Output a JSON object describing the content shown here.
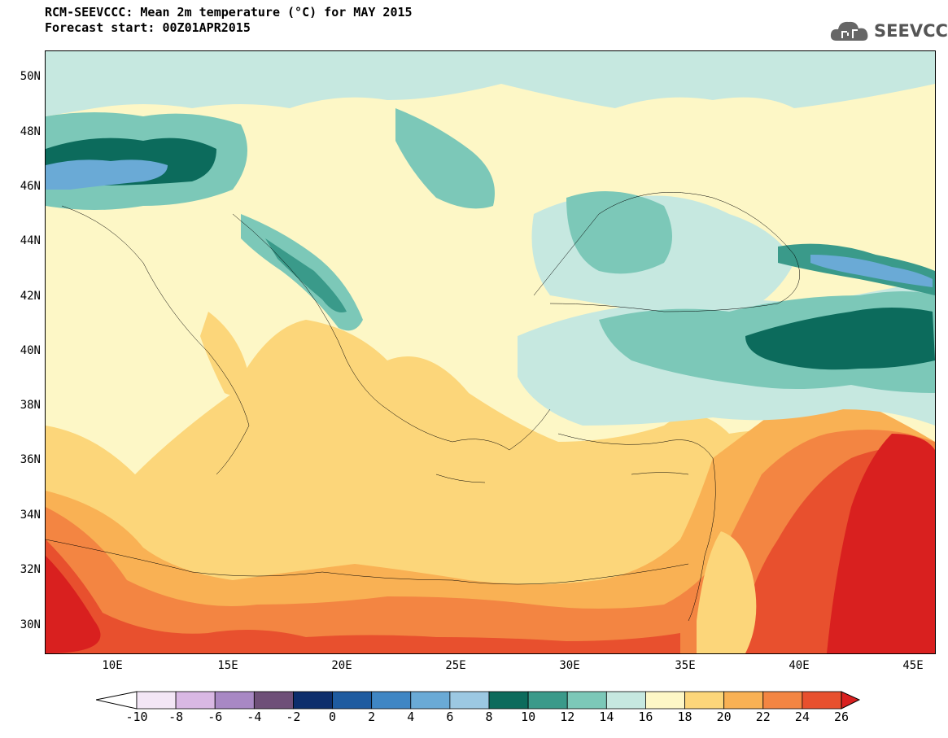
{
  "header": {
    "title": "RCM-SEEVCCC: Mean 2m temperature (°C) for MAY 2015",
    "subtitle": "Forecast start: 00Z01APR2015",
    "logo_text": "SEEVCCC"
  },
  "map": {
    "region": "Southeast Europe, Eastern Mediterranean and Black Sea",
    "variable": "Mean 2m temperature",
    "units": "°C",
    "lat_range": [
      29,
      51
    ],
    "lon_range": [
      7,
      46
    ],
    "lat_labels": [
      "50N",
      "48N",
      "46N",
      "44N",
      "42N",
      "40N",
      "38N",
      "36N",
      "34N",
      "32N",
      "30N"
    ],
    "lon_labels": [
      "10E",
      "15E",
      "20E",
      "25E",
      "30E",
      "35E",
      "40E",
      "45E"
    ]
  },
  "legend": {
    "labels": [
      "-10",
      "-8",
      "-6",
      "-4",
      "-2",
      "0",
      "2",
      "4",
      "6",
      "8",
      "10",
      "12",
      "14",
      "16",
      "18",
      "20",
      "22",
      "24",
      "26"
    ],
    "colors": [
      "#f3e6f6",
      "#d9b8e4",
      "#a888c4",
      "#6e4f78",
      "#0d2e6c",
      "#1e5ba0",
      "#3f86c4",
      "#6aaad6",
      "#9cc8e2",
      "#0c6b5c",
      "#3a9a8a",
      "#7cc8b8",
      "#c6e8e0",
      "#fdf7c6",
      "#fcd67a",
      "#f9b154",
      "#f38542",
      "#e8502e"
    ],
    "under_color": "#ffffff",
    "over_color": "#d9201f"
  }
}
